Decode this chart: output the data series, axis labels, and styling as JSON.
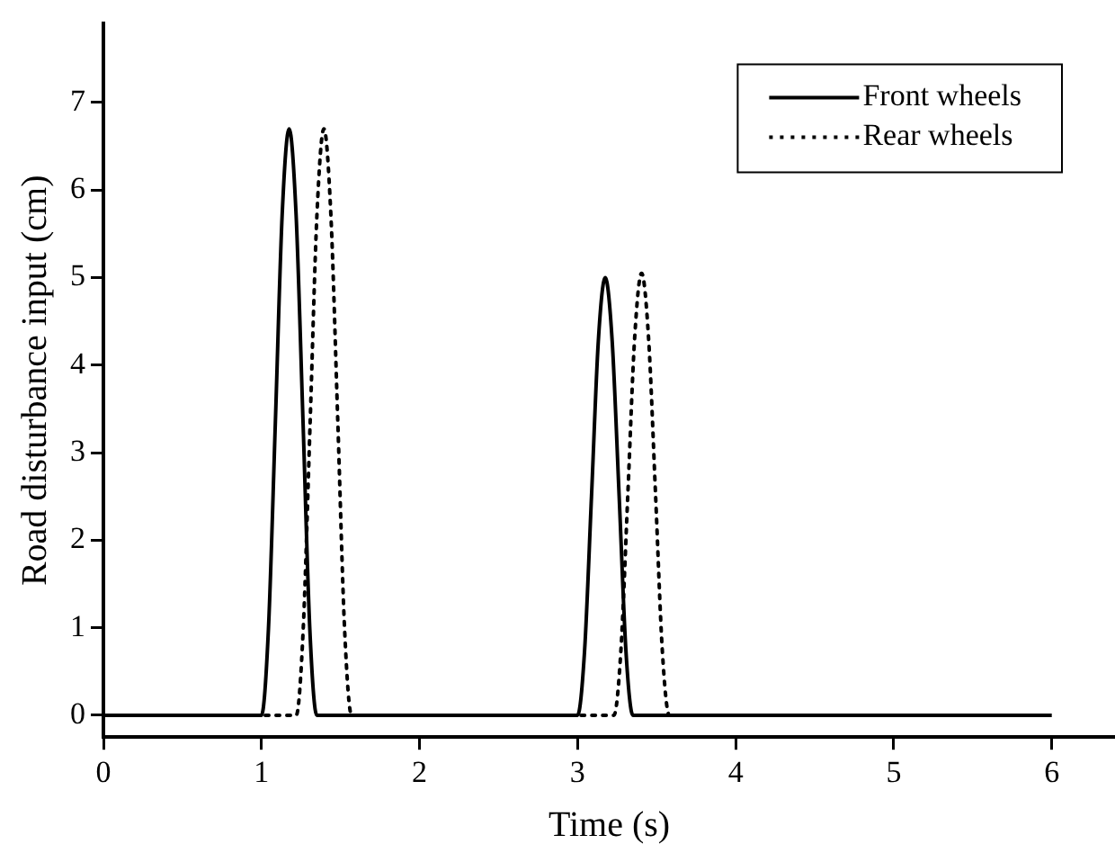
{
  "chart_data": {
    "type": "line",
    "xlabel": "Time (s)",
    "ylabel": "Road disturbance input (cm)",
    "xlim": [
      0,
      6.4
    ],
    "ylim": [
      -0.25,
      7.9
    ],
    "xticks": [
      0,
      1,
      2,
      3,
      4,
      5,
      6
    ],
    "yticks": [
      0,
      1,
      2,
      3,
      4,
      5,
      6,
      7
    ],
    "grid": false,
    "legend": "top right",
    "marker": "none",
    "series": [
      {
        "name": "Front wheels",
        "color": "#000000",
        "line_style": "solid",
        "x": [
          0,
          1.0,
          1.044,
          1.088,
          1.131,
          1.175,
          1.219,
          1.263,
          1.306,
          1.35,
          3.0,
          3.044,
          3.088,
          3.131,
          3.175,
          3.219,
          3.263,
          3.306,
          3.35,
          6
        ],
        "values": [
          0,
          0,
          0.98,
          3.35,
          5.72,
          6.7,
          5.72,
          3.35,
          0.98,
          0,
          0,
          0.73,
          2.5,
          4.27,
          5.0,
          4.27,
          2.5,
          0.73,
          0,
          0
        ]
      },
      {
        "name": "Rear wheels",
        "color": "#000000",
        "line_style": "dotted",
        "x": [
          0,
          1.22,
          1.264,
          1.308,
          1.351,
          1.395,
          1.439,
          1.483,
          1.526,
          1.57,
          3.23,
          3.274,
          3.318,
          3.361,
          3.405,
          3.449,
          3.493,
          3.536,
          3.58,
          6
        ],
        "values": [
          0,
          0,
          0.98,
          3.35,
          5.72,
          6.7,
          5.72,
          3.35,
          0.98,
          0,
          0,
          0.74,
          2.53,
          4.31,
          5.05,
          4.31,
          2.53,
          0.74,
          0,
          0
        ]
      }
    ]
  }
}
